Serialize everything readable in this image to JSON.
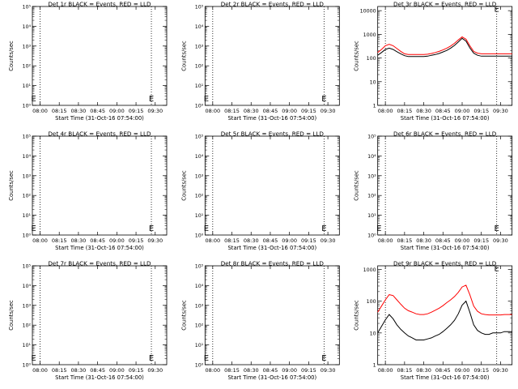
{
  "figure": {
    "colors": {
      "events": "#000000",
      "lld": "#ff0000",
      "axes": "#000000",
      "background": "#ffffff"
    }
  },
  "chart_data": [
    {
      "type": "line",
      "title": "Det 1r BLACK = Events, RED = LLD",
      "xlabel": "Start Time (31-Oct-16 07:54:00)",
      "ylabel": "Counts/sec",
      "xticks": [
        "08:00",
        "08:15",
        "08:30",
        "08:45",
        "09:00",
        "09:15",
        "09:30"
      ],
      "x_minutes_range": [
        0,
        37
      ],
      "xlabel_text": "Start Time (31-Oct-16 07:54:00)",
      "yscale": "log",
      "yticks": [
        "10⁰",
        "10¹",
        "10²",
        "10³",
        "10⁴",
        "10⁵"
      ],
      "ylim": [
        1,
        100000
      ],
      "vlines": [
        6,
        93
      ],
      "markers": [
        {
          "label": "E",
          "x": 93,
          "y": 1.6
        },
        {
          "label": "E",
          "x": 1,
          "y": 1.6
        }
      ],
      "series": []
    },
    {
      "type": "line",
      "title": "Det 2r BLACK = Events, RED = LLD",
      "xlabel": "Start Time (31-Oct-16 07:54:00)",
      "ylabel": "Counts/sec",
      "xticks": [
        "08:00",
        "08:15",
        "08:30",
        "08:45",
        "09:00",
        "09:15",
        "09:30"
      ],
      "yscale": "log",
      "yticks": [
        "10⁰",
        "10¹",
        "10²",
        "10³",
        "10⁴",
        "10⁵"
      ],
      "ylim": [
        1,
        100000
      ],
      "vlines": [
        6,
        93
      ],
      "markers": [
        {
          "label": "E",
          "x": 93,
          "y": 1.6
        },
        {
          "label": "E",
          "x": 1,
          "y": 1.6
        }
      ],
      "series": []
    },
    {
      "type": "line",
      "title": "Det 3r BLACK = Events, RED = LLD",
      "xlabel": "Start Time (31-Oct-16 07:54:00)",
      "ylabel": "Counts/sec",
      "xticks": [
        "08:00",
        "08:15",
        "08:30",
        "08:45",
        "09:00",
        "09:15",
        "09:30"
      ],
      "yscale": "log",
      "yticks": [
        "1",
        "10",
        "100",
        "1000",
        "10000"
      ],
      "ylim": [
        1,
        15000
      ],
      "vlines": [
        6,
        93
      ],
      "markers": [
        {
          "label": "E",
          "x": 93,
          "y": 9000
        }
      ],
      "series": [
        {
          "name": "LLD",
          "color": "#ff0000",
          "x": [
            0,
            3,
            6,
            9,
            12,
            15,
            18,
            21,
            24,
            27,
            30,
            33,
            36,
            39,
            42,
            45,
            48,
            51,
            54,
            57,
            60,
            63,
            66,
            69,
            72,
            75,
            78,
            81,
            84,
            87,
            90,
            93,
            96,
            99,
            102,
            105
          ],
          "values": [
            170,
            230,
            330,
            380,
            330,
            250,
            190,
            150,
            140,
            140,
            140,
            140,
            140,
            145,
            155,
            170,
            190,
            220,
            260,
            320,
            420,
            580,
            780,
            620,
            330,
            190,
            160,
            150,
            150,
            150,
            150,
            150,
            150,
            150,
            150,
            150
          ]
        },
        {
          "name": "Events",
          "color": "#000000",
          "x": [
            0,
            3,
            6,
            9,
            12,
            15,
            18,
            21,
            24,
            27,
            30,
            33,
            36,
            39,
            42,
            45,
            48,
            51,
            54,
            57,
            60,
            63,
            66,
            69,
            72,
            75,
            78,
            81,
            84,
            87,
            90,
            93,
            96,
            99,
            102,
            105
          ],
          "values": [
            130,
            170,
            230,
            260,
            230,
            185,
            150,
            125,
            115,
            115,
            115,
            115,
            115,
            120,
            130,
            140,
            155,
            180,
            210,
            260,
            340,
            480,
            680,
            520,
            270,
            160,
            130,
            120,
            120,
            120,
            120,
            120,
            120,
            120,
            120,
            120
          ]
        }
      ]
    },
    {
      "type": "line",
      "title": "Det 4r BLACK = Events, RED = LLD",
      "xlabel": "Start Time (31-Oct-16 07:54:00)",
      "ylabel": "Counts/sec",
      "xticks": [
        "08:00",
        "08:15",
        "08:30",
        "08:45",
        "09:00",
        "09:15",
        "09:30"
      ],
      "yscale": "log",
      "yticks": [
        "10⁰",
        "10¹",
        "10²",
        "10³",
        "10⁴",
        "10⁵"
      ],
      "ylim": [
        1,
        100000
      ],
      "vlines": [
        6,
        93
      ],
      "markers": [
        {
          "label": "E",
          "x": 93,
          "y": 1.6
        },
        {
          "label": "E",
          "x": 1,
          "y": 1.6
        }
      ],
      "series": []
    },
    {
      "type": "line",
      "title": "Det 5r BLACK = Events, RED = LLD",
      "xlabel": "Start Time (31-Oct-16 07:54:00)",
      "ylabel": "Counts/sec",
      "xticks": [
        "08:00",
        "08:15",
        "08:30",
        "08:45",
        "09:00",
        "09:15",
        "09:30"
      ],
      "yscale": "log",
      "yticks": [
        "10⁰",
        "10¹",
        "10²",
        "10³",
        "10⁴",
        "10⁵"
      ],
      "ylim": [
        1,
        100000
      ],
      "vlines": [
        6,
        93
      ],
      "markers": [
        {
          "label": "E",
          "x": 93,
          "y": 1.6
        },
        {
          "label": "E",
          "x": 1,
          "y": 1.6
        }
      ],
      "series": []
    },
    {
      "type": "line",
      "title": "Det 6r BLACK = Events, RED = LLD",
      "xlabel": "Start Time (31-Oct-16 07:54:00)",
      "ylabel": "Counts/sec",
      "xticks": [
        "08:00",
        "08:15",
        "08:30",
        "08:45",
        "09:00",
        "09:15",
        "09:30"
      ],
      "yscale": "log",
      "yticks": [
        "10⁰",
        "10¹",
        "10²",
        "10³",
        "10⁴",
        "10⁵"
      ],
      "ylim": [
        1,
        100000
      ],
      "vlines": [
        6,
        93
      ],
      "markers": [
        {
          "label": "E",
          "x": 93,
          "y": 1.6
        },
        {
          "label": "E",
          "x": 1,
          "y": 1.6
        }
      ],
      "series": []
    },
    {
      "type": "line",
      "title": "Det 7r BLACK = Events, RED = LLD",
      "xlabel": "Start Time (31-Oct-16 07:54:00)",
      "ylabel": "Counts/sec",
      "xticks": [
        "08:00",
        "08:15",
        "08:30",
        "08:45",
        "09:00",
        "09:15",
        "09:30"
      ],
      "yscale": "log",
      "yticks": [
        "10⁰",
        "10¹",
        "10²",
        "10³",
        "10⁴",
        "10⁵"
      ],
      "ylim": [
        1,
        100000
      ],
      "vlines": [
        6,
        93
      ],
      "markers": [
        {
          "label": "E",
          "x": 93,
          "y": 1.6
        },
        {
          "label": "E",
          "x": 1,
          "y": 1.6
        }
      ],
      "series": []
    },
    {
      "type": "line",
      "title": "Det 8r BLACK = Events, RED = LLD",
      "xlabel": "Start Time (31-Oct-16 07:54:00)",
      "ylabel": "Counts/sec",
      "xticks": [
        "08:00",
        "08:15",
        "08:30",
        "08:45",
        "09:00",
        "09:15",
        "09:30"
      ],
      "yscale": "log",
      "yticks": [
        "10⁰",
        "10¹",
        "10²",
        "10³",
        "10⁴",
        "10⁵"
      ],
      "ylim": [
        1,
        100000
      ],
      "vlines": [
        6,
        93
      ],
      "markers": [
        {
          "label": "E",
          "x": 93,
          "y": 1.6
        },
        {
          "label": "E",
          "x": 1,
          "y": 1.6
        }
      ],
      "series": []
    },
    {
      "type": "line",
      "title": "Det 9r BLACK = Events, RED = LLD",
      "xlabel": "Start Time (31-Oct-16 07:54:00)",
      "ylabel": "Counts/sec",
      "xticks": [
        "08:00",
        "08:15",
        "08:30",
        "08:45",
        "09:00",
        "09:15",
        "09:30"
      ],
      "yscale": "log",
      "yticks": [
        "1",
        "10",
        "100",
        "1000"
      ],
      "ylim": [
        1,
        1300
      ],
      "vlines": [
        6,
        93
      ],
      "markers": [
        {
          "label": "E",
          "x": 93,
          "y": 900
        }
      ],
      "series": [
        {
          "name": "LLD",
          "color": "#ff0000",
          "x": [
            0,
            3,
            6,
            9,
            12,
            15,
            18,
            21,
            24,
            27,
            30,
            33,
            36,
            39,
            42,
            45,
            48,
            51,
            54,
            57,
            60,
            63,
            66,
            69,
            72,
            75,
            78,
            81,
            84,
            87,
            90,
            93,
            96,
            99,
            102,
            105
          ],
          "values": [
            45,
            70,
            110,
            160,
            150,
            110,
            80,
            60,
            50,
            45,
            40,
            38,
            38,
            40,
            45,
            52,
            60,
            72,
            90,
            110,
            140,
            190,
            280,
            320,
            160,
            70,
            48,
            40,
            38,
            37,
            37,
            37,
            37,
            38,
            38,
            38
          ]
        },
        {
          "name": "Events",
          "color": "#000000",
          "x": [
            0,
            3,
            6,
            9,
            12,
            15,
            18,
            21,
            24,
            27,
            30,
            33,
            36,
            39,
            42,
            45,
            48,
            51,
            54,
            57,
            60,
            63,
            66,
            69,
            72,
            75,
            78,
            81,
            84,
            87,
            90,
            93,
            96,
            99,
            102,
            105
          ],
          "values": [
            10,
            16,
            26,
            38,
            28,
            18,
            13,
            10,
            8,
            7,
            6,
            6,
            6,
            6.5,
            7,
            8,
            9,
            11,
            14,
            18,
            25,
            40,
            75,
            100,
            45,
            18,
            12,
            10,
            9,
            9,
            10,
            10,
            10,
            11,
            11,
            11
          ]
        }
      ]
    }
  ]
}
